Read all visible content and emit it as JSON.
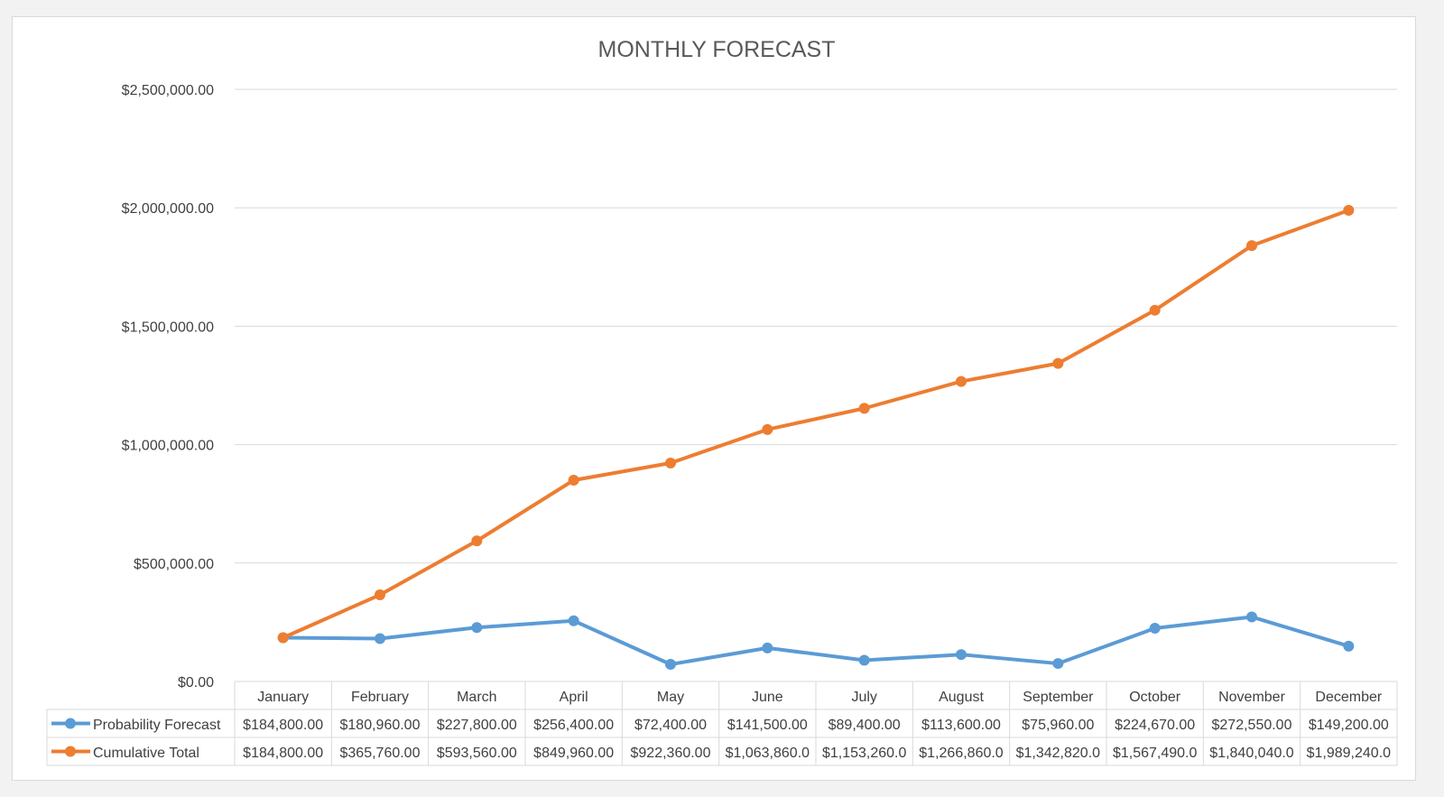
{
  "chart_data": {
    "type": "line",
    "title": "MONTHLY FORECAST",
    "categories": [
      "January",
      "February",
      "March",
      "April",
      "May",
      "June",
      "July",
      "August",
      "September",
      "October",
      "November",
      "December"
    ],
    "ylim": [
      0,
      2500000
    ],
    "y_ticks": [
      0,
      500000,
      1000000,
      1500000,
      2000000,
      2500000
    ],
    "y_tick_labels": [
      "$0.00",
      "$500,000.00",
      "$1,000,000.00",
      "$1,500,000.00",
      "$2,000,000.00",
      "$2,500,000.00"
    ],
    "grid": true,
    "legend": "data-table",
    "series": [
      {
        "name": "Probability Forecast",
        "color": "#5b9bd5",
        "values": [
          184800,
          180960,
          227800,
          256400,
          72400,
          141500,
          89400,
          113600,
          75960,
          224670,
          272550,
          149200
        ],
        "labels": [
          "$184,800.00",
          "$180,960.00",
          "$227,800.00",
          "$256,400.00",
          "$72,400.00",
          "$141,500.00",
          "$89,400.00",
          "$113,600.00",
          "$75,960.00",
          "$224,670.00",
          "$272,550.00",
          "$149,200.00"
        ]
      },
      {
        "name": "Cumulative Total",
        "color": "#ed7d31",
        "values": [
          184800,
          365760,
          593560,
          849960,
          922360,
          1063860,
          1153260,
          1266860,
          1342820,
          1567490,
          1840040,
          1989240
        ],
        "labels": [
          "$184,800.00",
          "$365,760.00",
          "$593,560.00",
          "$849,960.00",
          "$922,360.00",
          "$1,063,860.0",
          "$1,153,260.0",
          "$1,266,860.0",
          "$1,342,820.0",
          "$1,567,490.0",
          "$1,840,040.0",
          "$1,989,240.0"
        ]
      }
    ]
  }
}
